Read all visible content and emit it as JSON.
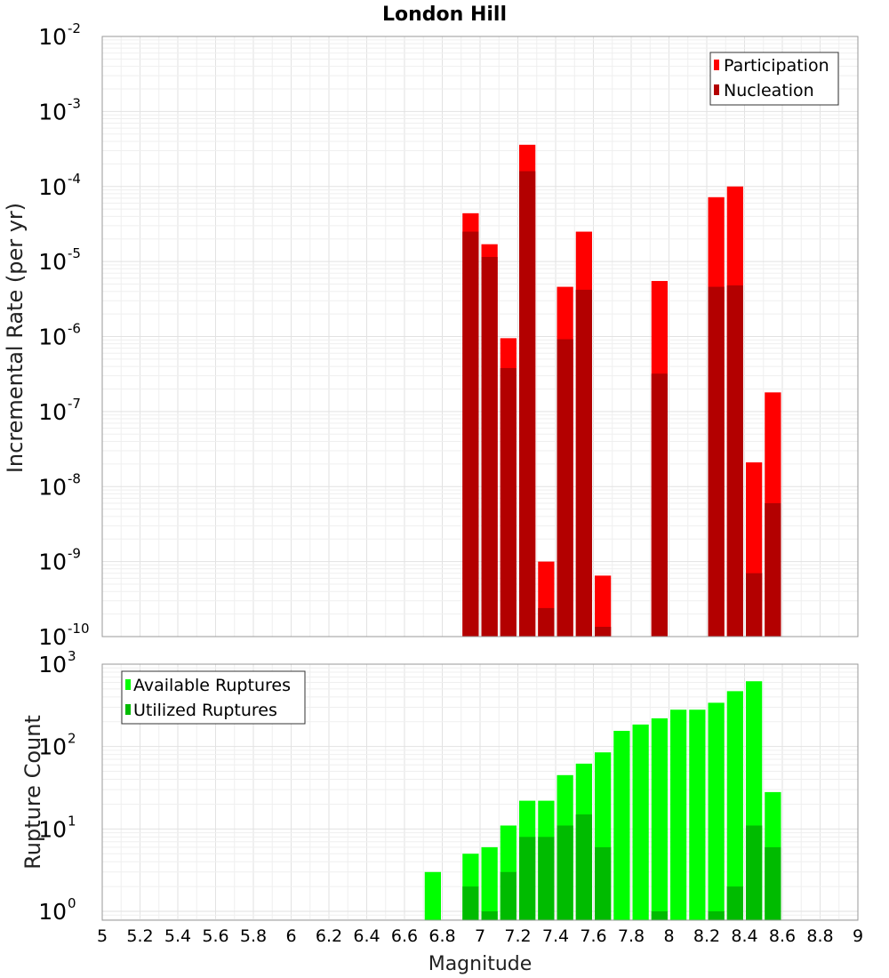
{
  "chart_data": [
    {
      "type": "bar",
      "title": "London Hill",
      "ylabel": "Incremental Rate (per yr)",
      "xlabel": "",
      "yscale": "log",
      "ylim": [
        1e-10,
        0.01
      ],
      "xlim": [
        5,
        9
      ],
      "bar_width": 0.1,
      "legend": {
        "placement": "top-right"
      },
      "x": [
        6.95,
        7.05,
        7.15,
        7.25,
        7.35,
        7.45,
        7.55,
        7.65,
        7.95,
        8.25,
        8.35,
        8.45,
        8.55
      ],
      "series": [
        {
          "name": "Participation",
          "color": "#ff0000",
          "values": [
            4.4e-05,
            1.7e-05,
            9.5e-07,
            0.00036,
            1e-09,
            4.6e-06,
            2.5e-05,
            6.5e-10,
            5.5e-06,
            7.2e-05,
            0.0001,
            2.1e-08,
            1.8e-07
          ]
        },
        {
          "name": "Nucleation",
          "color": "#b30000",
          "values": [
            2.5e-05,
            1.15e-05,
            3.8e-07,
            0.00016,
            2.4e-10,
            9.2e-07,
            4.2e-06,
            1.35e-10,
            3.2e-07,
            4.6e-06,
            4.8e-06,
            7e-10,
            6e-09
          ]
        }
      ]
    },
    {
      "type": "bar",
      "title": "",
      "ylabel": "Rupture Count",
      "xlabel": "Magnitude",
      "yscale": "log",
      "ylim": [
        0.78,
        1000
      ],
      "xlim": [
        5,
        9
      ],
      "bar_width": 0.1,
      "legend": {
        "placement": "top-left"
      },
      "x_ticks": [
        "5",
        "5.2",
        "5.4",
        "5.6",
        "5.8",
        "6",
        "6.2",
        "6.4",
        "6.6",
        "6.8",
        "7",
        "7.2",
        "7.4",
        "7.6",
        "7.8",
        "8",
        "8.2",
        "8.4",
        "8.6",
        "8.8",
        "9"
      ],
      "x": [
        6.75,
        6.95,
        7.05,
        7.15,
        7.25,
        7.35,
        7.45,
        7.55,
        7.65,
        7.75,
        7.85,
        7.95,
        8.05,
        8.15,
        8.25,
        8.35,
        8.45,
        8.55
      ],
      "series": [
        {
          "name": "Available Ruptures",
          "color": "#00ff00",
          "values": [
            3,
            5,
            6,
            11,
            22,
            22,
            45,
            62,
            85,
            155,
            185,
            220,
            280,
            280,
            340,
            470,
            620,
            28
          ]
        },
        {
          "name": "Utilized Ruptures",
          "color": "#00bb00",
          "values": [
            0,
            2,
            1,
            3,
            8,
            8,
            11,
            15,
            6,
            0,
            0,
            1,
            0,
            0,
            1,
            2,
            11,
            6
          ]
        }
      ]
    }
  ]
}
